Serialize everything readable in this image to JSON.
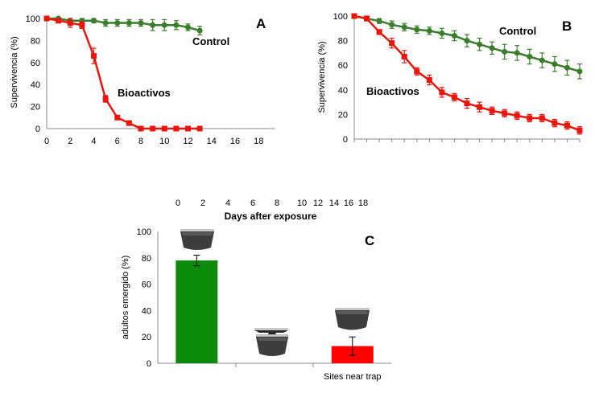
{
  "colors": {
    "control": "#3a7d2c",
    "control_label": "#2e8b1e",
    "bioactivos": "#e8160c",
    "bar_green": "#0c8a0c",
    "bar_red": "#ff0000",
    "axis": "#888888"
  },
  "chart_data": [
    {
      "panel": "A",
      "type": "line",
      "ylabel": "Supervivencia (%)",
      "ylim": [
        0,
        100
      ],
      "yticks": [
        "0",
        "20",
        "40",
        "60",
        "80",
        "100"
      ],
      "xticks": [
        "0",
        "2",
        "4",
        "6",
        "8",
        "10",
        "12",
        "14",
        "16",
        "18"
      ],
      "series": [
        {
          "name": "Control",
          "x": [
            0,
            1,
            2,
            3,
            4,
            5,
            6,
            7,
            8,
            9,
            10,
            11,
            12,
            13
          ],
          "y": [
            100,
            100,
            98,
            98,
            98,
            96,
            96,
            96,
            96,
            94,
            94,
            94,
            92,
            89
          ],
          "err": [
            1,
            1,
            2,
            2,
            2,
            3,
            3,
            3,
            3,
            5,
            5,
            4,
            3,
            4
          ]
        },
        {
          "name": "Bioactivos",
          "x": [
            0,
            1,
            2,
            3,
            4,
            5,
            6,
            7,
            8,
            9,
            10,
            11,
            12,
            13
          ],
          "y": [
            100,
            98,
            96,
            94,
            66,
            27,
            10,
            5,
            0,
            0,
            0,
            0,
            0,
            0
          ],
          "err": [
            1,
            2,
            4,
            3,
            7,
            3,
            1,
            2,
            1,
            0,
            0,
            0,
            0,
            0
          ]
        }
      ]
    },
    {
      "panel": "B",
      "type": "line",
      "ylabel": "Supervivencia (%)",
      "ylim": [
        0,
        100
      ],
      "yticks": [
        "0",
        "20",
        "40",
        "60",
        "80",
        "100"
      ],
      "series": [
        {
          "name": "Control",
          "x": [
            0,
            1,
            2,
            3,
            4,
            5,
            6,
            7,
            8,
            9,
            10,
            11,
            12,
            13,
            14,
            15,
            16,
            17,
            18
          ],
          "y": [
            100,
            98,
            96,
            93,
            91,
            89,
            88,
            86,
            84,
            80,
            77,
            74,
            71,
            70,
            67,
            64,
            61,
            58,
            55
          ],
          "err": [
            1,
            1,
            2,
            3,
            3,
            3,
            3,
            4,
            4,
            5,
            5,
            5,
            6,
            6,
            6,
            6,
            6,
            6,
            6
          ]
        },
        {
          "name": "Bioactivos",
          "x": [
            0,
            1,
            2,
            3,
            4,
            5,
            6,
            7,
            8,
            9,
            10,
            11,
            12,
            13,
            14,
            15,
            16,
            17,
            18
          ],
          "y": [
            100,
            98,
            87,
            78,
            67,
            55,
            48,
            38,
            34,
            29,
            26,
            23,
            21,
            19,
            17,
            17,
            13,
            11,
            7
          ],
          "err": [
            1,
            2,
            2,
            4,
            5,
            3,
            4,
            4,
            3,
            4,
            4,
            3,
            3,
            3,
            3,
            3,
            3,
            3,
            3
          ]
        }
      ]
    },
    {
      "panel": "C",
      "type": "bar",
      "ylabel": "adultos emergido (%)",
      "ylim": [
        0,
        100
      ],
      "yticks": [
        "0",
        "20",
        "40",
        "60",
        "80",
        "100"
      ],
      "categories": [
        "",
        "",
        "Sites near trap"
      ],
      "values": [
        78,
        0,
        13
      ],
      "err": [
        4,
        0,
        7
      ],
      "top_axis_ticks": [
        "0",
        "2",
        "4",
        "6",
        "8",
        "10",
        "12",
        "14",
        "16",
        "18"
      ],
      "top_axis_label": "Days after exposure"
    }
  ]
}
